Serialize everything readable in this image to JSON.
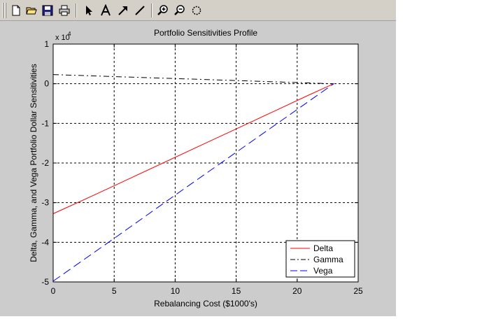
{
  "toolbar": {
    "buttons": [
      {
        "name": "new-figure-button",
        "icon": "new-file-icon"
      },
      {
        "name": "open-file-button",
        "icon": "open-folder-icon"
      },
      {
        "name": "save-button",
        "icon": "save-icon"
      },
      {
        "name": "print-button",
        "icon": "print-icon"
      },
      {
        "name": "edit-plot-button",
        "icon": "pointer-arrow-icon"
      },
      {
        "name": "insert-text-button",
        "icon": "text-icon"
      },
      {
        "name": "insert-arrow-button",
        "icon": "arrow-icon"
      },
      {
        "name": "insert-line-button",
        "icon": "line-icon"
      },
      {
        "name": "zoom-in-button",
        "icon": "zoom-in-icon"
      },
      {
        "name": "zoom-out-button",
        "icon": "zoom-out-icon"
      },
      {
        "name": "rotate-3d-button",
        "icon": "rotate-icon"
      }
    ]
  },
  "chart_data": {
    "type": "line",
    "title": "Portfolio Sensitivities Profile",
    "xlabel": "Rebalancing Cost ($1000's)",
    "ylabel": "Delta, Gamma, and Vega Portfolio Dollar Sensitivities",
    "y_exponent_base": "x 10",
    "y_exponent_power": "4",
    "xlim": [
      0,
      25
    ],
    "ylim": [
      -5,
      1
    ],
    "xticks": [
      0,
      5,
      10,
      15,
      20,
      25
    ],
    "yticks": [
      -5,
      -4,
      -3,
      -2,
      -1,
      0,
      1
    ],
    "xtick_labels": [
      "0",
      "5",
      "10",
      "15",
      "20",
      "25"
    ],
    "ytick_labels": [
      "-5",
      "-4",
      "-3",
      "-2",
      "-1",
      "0",
      "1"
    ],
    "grid": true,
    "legend_position": "bottom-right",
    "series": [
      {
        "name": "Delta",
        "color": "#ff0000",
        "style": "solid",
        "x": [
          0,
          3,
          6,
          9,
          12,
          15,
          18,
          21,
          23
        ],
        "y": [
          -3.28,
          -2.86,
          -2.43,
          -2.0,
          -1.57,
          -1.14,
          -0.71,
          -0.28,
          0.0
        ]
      },
      {
        "name": "Gamma",
        "color": "#000000",
        "style": "dashdot",
        "x": [
          0,
          4,
          8,
          12,
          16,
          20,
          23
        ],
        "y": [
          0.23,
          0.19,
          0.15,
          0.11,
          0.07,
          0.03,
          0.0
        ]
      },
      {
        "name": "Vega",
        "color": "#0000ff",
        "style": "dashed",
        "x": [
          0,
          5,
          10,
          15,
          20,
          23
        ],
        "y": [
          -4.98,
          -3.9,
          -2.81,
          -1.73,
          -0.65,
          0.0
        ]
      }
    ]
  }
}
